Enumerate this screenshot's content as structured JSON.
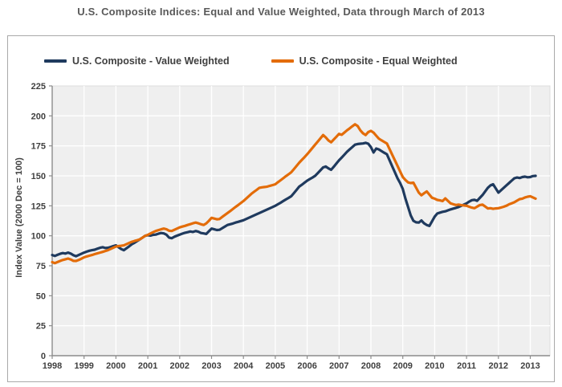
{
  "page": {
    "title": "U.S. Composite Indices: Equal and Value Weighted, Data through March of 2013"
  },
  "legend": {
    "items": [
      {
        "label": "U.S. Composite - Value Weighted",
        "color": "#1f3a5e"
      },
      {
        "label": "U.S. Composite - Equal Weighted",
        "color": "#e36c09"
      }
    ]
  },
  "colors": {
    "plot_background": "#efefef",
    "gridline": "#ffffff",
    "axis_line": "#8c8c8c",
    "tick_text": "#404040",
    "title_text": "#595959",
    "navy_series": "#1f3a5e",
    "orange_series": "#e36c09"
  },
  "chart_data": {
    "type": "line",
    "title": "U.S. Composite Indices: Equal and Value Weighted, Data through March of 2013",
    "xlabel": "",
    "ylabel": "Index Value (2000 Dec = 100)",
    "ylim": [
      0,
      225
    ],
    "ytick_step": 25,
    "yticks": [
      "0",
      "25",
      "50",
      "75",
      "100",
      "125",
      "150",
      "175",
      "200",
      "225"
    ],
    "xticks": [
      "1998",
      "1999",
      "2000",
      "2001",
      "2002",
      "2003",
      "2004",
      "2005",
      "2006",
      "2007",
      "2008",
      "2009",
      "2010",
      "2011",
      "2012",
      "2013"
    ],
    "x_frequency": "monthly",
    "x_start": "1998-01",
    "x_end": "2013-03",
    "grid": true,
    "legend_position": "top",
    "series": [
      {
        "name": "U.S. Composite - Value Weighted",
        "color": "#1f3a5e",
        "values": [
          84,
          83.2,
          84.1,
          85,
          85.6,
          85.2,
          86,
          85.1,
          83.8,
          83,
          84,
          85,
          86,
          86.8,
          87.5,
          88,
          88.4,
          89.2,
          90,
          90.5,
          89.8,
          90,
          90.7,
          91.4,
          92,
          90.5,
          88.9,
          88,
          89.6,
          91.2,
          93,
          94.2,
          95.6,
          97,
          98.5,
          100,
          100.5,
          100.2,
          100.8,
          101,
          101.7,
          102.3,
          102,
          100.9,
          98.5,
          98,
          99.2,
          100.1,
          101,
          101.8,
          102.5,
          103,
          103.6,
          103.2,
          104,
          103.4,
          102.3,
          102,
          101.5,
          103.8,
          106,
          105.4,
          104.8,
          105,
          106.3,
          107.6,
          109,
          109.6,
          110.2,
          111,
          111.6,
          112.3,
          113,
          114,
          115,
          116,
          117,
          118,
          119,
          120,
          121,
          122,
          123,
          124,
          125,
          126.3,
          127.6,
          129,
          130.3,
          131.6,
          133,
          135.6,
          138.3,
          141,
          142.6,
          144.3,
          146,
          147.3,
          148.6,
          150,
          152.3,
          154.6,
          157,
          157.8,
          156.2,
          155,
          157.6,
          160.3,
          163,
          165.3,
          167.6,
          170,
          172,
          174,
          176,
          176.5,
          176.8,
          177,
          177.5,
          176.8,
          174,
          169.5,
          172.8,
          172,
          170.6,
          169.3,
          168,
          163,
          158,
          153,
          148,
          144,
          139,
          131,
          124,
          117,
          112.5,
          111.2,
          111,
          112.8,
          110.4,
          109,
          108.2,
          112,
          116,
          118.6,
          119.3,
          120,
          120.4,
          121.2,
          122,
          122.7,
          123.3,
          124,
          125,
          126,
          127,
          128.5,
          129.7,
          130,
          129.2,
          131.6,
          134,
          137,
          140,
          142,
          143,
          139.5,
          136,
          138,
          140,
          142,
          144,
          146,
          148,
          148.6,
          148.2,
          149,
          149.3,
          148.8,
          149,
          149.8,
          150
        ]
      },
      {
        "name": "U.S. Composite - Equal Weighted",
        "color": "#e36c09",
        "values": [
          78,
          77.2,
          78.1,
          79,
          79.8,
          80.4,
          81,
          80.2,
          79.1,
          79,
          79.8,
          80.9,
          82,
          82.8,
          83.4,
          84,
          84.7,
          85.3,
          86,
          86.6,
          87.3,
          88,
          89,
          90,
          91,
          91.4,
          91.7,
          92,
          93,
          94,
          95,
          95.7,
          96.3,
          97,
          98.5,
          100,
          100.8,
          101.9,
          103,
          104,
          104.7,
          105.4,
          106,
          105.5,
          104.2,
          104,
          105,
          106,
          107,
          107.7,
          108.3,
          109,
          109.7,
          110.4,
          111,
          110.4,
          109.6,
          109,
          110.3,
          112.5,
          115,
          114.4,
          113.8,
          114,
          115.7,
          117.3,
          119,
          120.6,
          122.3,
          124,
          125.6,
          127.3,
          129,
          131,
          133,
          135,
          136.7,
          138.3,
          140,
          140.4,
          140.7,
          141,
          141.7,
          142.3,
          143,
          144.7,
          146.3,
          148,
          149.7,
          151.3,
          153,
          155.6,
          158.3,
          161,
          163.3,
          165.6,
          168,
          170.6,
          173.3,
          176,
          178.6,
          181.3,
          184,
          182,
          179.5,
          178,
          180.3,
          182.6,
          185,
          184.2,
          186.1,
          188,
          189.6,
          191.3,
          193,
          191.5,
          188,
          185.5,
          184,
          186.5,
          187.5,
          186,
          183.5,
          181,
          179.6,
          178.3,
          177,
          172.3,
          167.6,
          163,
          158.3,
          153.6,
          149,
          146.5,
          144.5,
          144,
          144.3,
          140.2,
          136,
          133.8,
          135.5,
          137,
          134.3,
          131.7,
          131,
          129.9,
          129.5,
          129,
          131.2,
          129.1,
          127,
          126.3,
          125.7,
          126,
          125.6,
          125.3,
          125,
          124.2,
          123.5,
          123,
          124.3,
          125.6,
          126,
          124.4,
          122.8,
          123,
          122.5,
          122.8,
          123,
          123.6,
          124.2,
          125,
          126.2,
          127.1,
          128,
          129.3,
          130.6,
          131,
          132,
          132.6,
          133,
          132,
          131
        ]
      }
    ]
  }
}
